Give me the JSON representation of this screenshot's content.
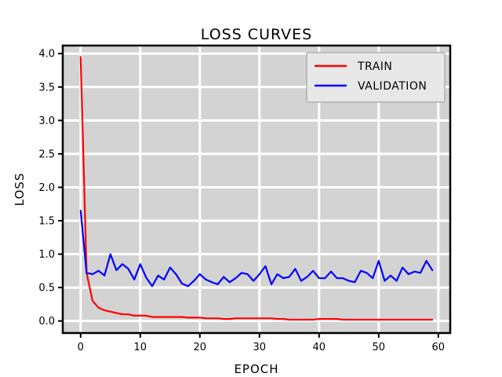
{
  "chart_data": {
    "type": "line",
    "title": "LOSS CURVES",
    "xlabel": "EPOCH",
    "ylabel": "LOSS",
    "xlim": [
      -3,
      62
    ],
    "ylim": [
      -0.18,
      4.12
    ],
    "xticks": [
      0,
      10,
      20,
      30,
      40,
      50,
      60
    ],
    "yticks": [
      0.0,
      0.5,
      1.0,
      1.5,
      2.0,
      2.5,
      3.0,
      3.5,
      4.0
    ],
    "grid": true,
    "legend_position": "top-right",
    "background_color": "#d3d3d3",
    "x": [
      0,
      1,
      2,
      3,
      4,
      5,
      6,
      7,
      8,
      9,
      10,
      11,
      12,
      13,
      14,
      15,
      16,
      17,
      18,
      19,
      20,
      21,
      22,
      23,
      24,
      25,
      26,
      27,
      28,
      29,
      30,
      31,
      32,
      33,
      34,
      35,
      36,
      37,
      38,
      39,
      40,
      41,
      42,
      43,
      44,
      45,
      46,
      47,
      48,
      49,
      50,
      51,
      52,
      53,
      54,
      55,
      56,
      57,
      58,
      59
    ],
    "series": [
      {
        "name": "TRAIN",
        "color": "#ff0000",
        "values": [
          3.95,
          0.72,
          0.3,
          0.2,
          0.16,
          0.14,
          0.12,
          0.1,
          0.1,
          0.08,
          0.08,
          0.08,
          0.06,
          0.06,
          0.06,
          0.06,
          0.06,
          0.06,
          0.05,
          0.05,
          0.05,
          0.04,
          0.04,
          0.04,
          0.03,
          0.03,
          0.04,
          0.04,
          0.04,
          0.04,
          0.04,
          0.04,
          0.04,
          0.03,
          0.03,
          0.02,
          0.02,
          0.02,
          0.02,
          0.02,
          0.03,
          0.03,
          0.03,
          0.03,
          0.02,
          0.02,
          0.02,
          0.02,
          0.02,
          0.02,
          0.02,
          0.02,
          0.02,
          0.02,
          0.02,
          0.02,
          0.02,
          0.02,
          0.02,
          0.02
        ]
      },
      {
        "name": "VALIDATION",
        "color": "#0000ff",
        "values": [
          1.65,
          0.72,
          0.7,
          0.75,
          0.68,
          1.0,
          0.76,
          0.85,
          0.78,
          0.62,
          0.85,
          0.65,
          0.52,
          0.68,
          0.62,
          0.8,
          0.7,
          0.56,
          0.52,
          0.6,
          0.7,
          0.62,
          0.58,
          0.55,
          0.66,
          0.58,
          0.64,
          0.72,
          0.7,
          0.6,
          0.7,
          0.82,
          0.55,
          0.7,
          0.64,
          0.66,
          0.78,
          0.6,
          0.66,
          0.75,
          0.64,
          0.64,
          0.74,
          0.64,
          0.64,
          0.6,
          0.58,
          0.75,
          0.72,
          0.64,
          0.9,
          0.6,
          0.68,
          0.6,
          0.8,
          0.7,
          0.74,
          0.72,
          0.9,
          0.76
        ]
      }
    ]
  }
}
